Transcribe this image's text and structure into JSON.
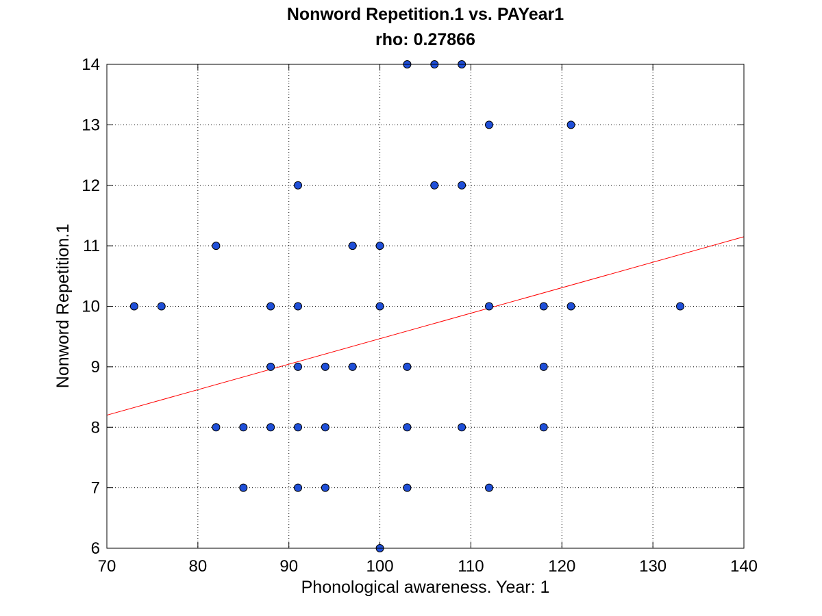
{
  "chart_data": {
    "type": "scatter",
    "title": "Nonword Repetition.1 vs. PAYear1",
    "subtitle": "rho: 0.27866",
    "xlabel": "Phonological awareness. Year: 1",
    "ylabel": "Nonword Repetition.1",
    "xlim": [
      70,
      140
    ],
    "ylim": [
      6,
      14
    ],
    "xticks": [
      70,
      80,
      90,
      100,
      110,
      120,
      130,
      140
    ],
    "yticks": [
      6,
      7,
      8,
      9,
      10,
      11,
      12,
      13,
      14
    ],
    "grid": true,
    "marker_color": "#1f4fd8",
    "marker_edge_color": "#000000",
    "fit_line_color": "#ff0000",
    "fit_line": {
      "x": [
        70,
        140
      ],
      "y": [
        8.2,
        11.15
      ]
    },
    "points": [
      {
        "x": 73,
        "y": 10
      },
      {
        "x": 76,
        "y": 10
      },
      {
        "x": 82,
        "y": 11
      },
      {
        "x": 82,
        "y": 8
      },
      {
        "x": 85,
        "y": 8
      },
      {
        "x": 85,
        "y": 7
      },
      {
        "x": 88,
        "y": 10
      },
      {
        "x": 88,
        "y": 9
      },
      {
        "x": 88,
        "y": 8
      },
      {
        "x": 91,
        "y": 12
      },
      {
        "x": 91,
        "y": 10
      },
      {
        "x": 91,
        "y": 9
      },
      {
        "x": 91,
        "y": 8
      },
      {
        "x": 91,
        "y": 7
      },
      {
        "x": 94,
        "y": 9
      },
      {
        "x": 94,
        "y": 8
      },
      {
        "x": 94,
        "y": 7
      },
      {
        "x": 97,
        "y": 11
      },
      {
        "x": 97,
        "y": 9
      },
      {
        "x": 100,
        "y": 11
      },
      {
        "x": 100,
        "y": 10
      },
      {
        "x": 100,
        "y": 6
      },
      {
        "x": 103,
        "y": 14
      },
      {
        "x": 103,
        "y": 9
      },
      {
        "x": 103,
        "y": 8
      },
      {
        "x": 103,
        "y": 7
      },
      {
        "x": 106,
        "y": 14
      },
      {
        "x": 106,
        "y": 12
      },
      {
        "x": 109,
        "y": 14
      },
      {
        "x": 109,
        "y": 12
      },
      {
        "x": 109,
        "y": 8
      },
      {
        "x": 112,
        "y": 13
      },
      {
        "x": 112,
        "y": 10
      },
      {
        "x": 112,
        "y": 7
      },
      {
        "x": 118,
        "y": 10
      },
      {
        "x": 118,
        "y": 9
      },
      {
        "x": 118,
        "y": 8
      },
      {
        "x": 121,
        "y": 13
      },
      {
        "x": 121,
        "y": 10
      },
      {
        "x": 133,
        "y": 10
      }
    ]
  }
}
